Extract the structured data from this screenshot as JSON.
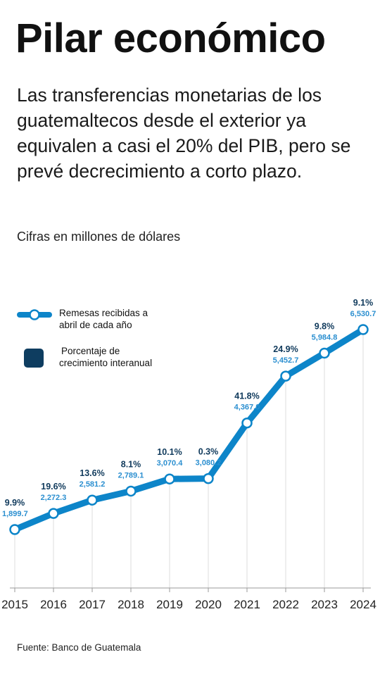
{
  "title": "Pilar económico",
  "subtitle": "Las transferencias monetarias de los guatemaltecos desde el exterior ya equivalen a casi el 20% del PIB, pero se prevé decrecimiento a corto plazo.",
  "units_note": "Cifras en millones de dólares",
  "source": "Fuente: Banco de Guatemala",
  "legend": {
    "remittances_line1": "Remesas recibidas a",
    "remittances_line2": "abril de cada año",
    "growth_line1": "Porcentaje de",
    "growth_line2": "crecimiento interanual"
  },
  "colors": {
    "line": "#0d85c9",
    "value_label": "#2b8fd0",
    "percent_label": "#103a5c",
    "legend_square": "#0e3d60",
    "grid": "#dedede"
  },
  "chart_data": {
    "type": "line",
    "categories": [
      "2015",
      "2016",
      "2017",
      "2018",
      "2019",
      "2020",
      "2021",
      "2022",
      "2023",
      "2024"
    ],
    "series": [
      {
        "name": "Remesas recibidas a abril de cada año",
        "values": [
          1899.7,
          2272.3,
          2581.2,
          2789.1,
          3070.4,
          3080.2,
          4367.0,
          5452.7,
          5984.8,
          6530.7
        ],
        "labels": [
          "1,899.7",
          "2,272.3",
          "2,581.2",
          "2,789.1",
          "3,070.4",
          "3,080.2",
          "4,367.0",
          "5,452.7",
          "5,984.8",
          "6,530.7"
        ]
      },
      {
        "name": "Porcentaje de crecimiento interanual",
        "values": [
          9.9,
          19.6,
          13.6,
          8.1,
          10.1,
          0.3,
          41.8,
          24.9,
          9.8,
          9.1
        ],
        "labels": [
          "9.9%",
          "19.6%",
          "13.6%",
          "8.1%",
          "10.1%",
          "0.3%",
          "41.8%",
          "24.9%",
          "9.8%",
          "9.1%"
        ]
      }
    ],
    "xlabel": "",
    "ylabel": "",
    "grid": "vertical",
    "legend_placement": "top-left"
  }
}
